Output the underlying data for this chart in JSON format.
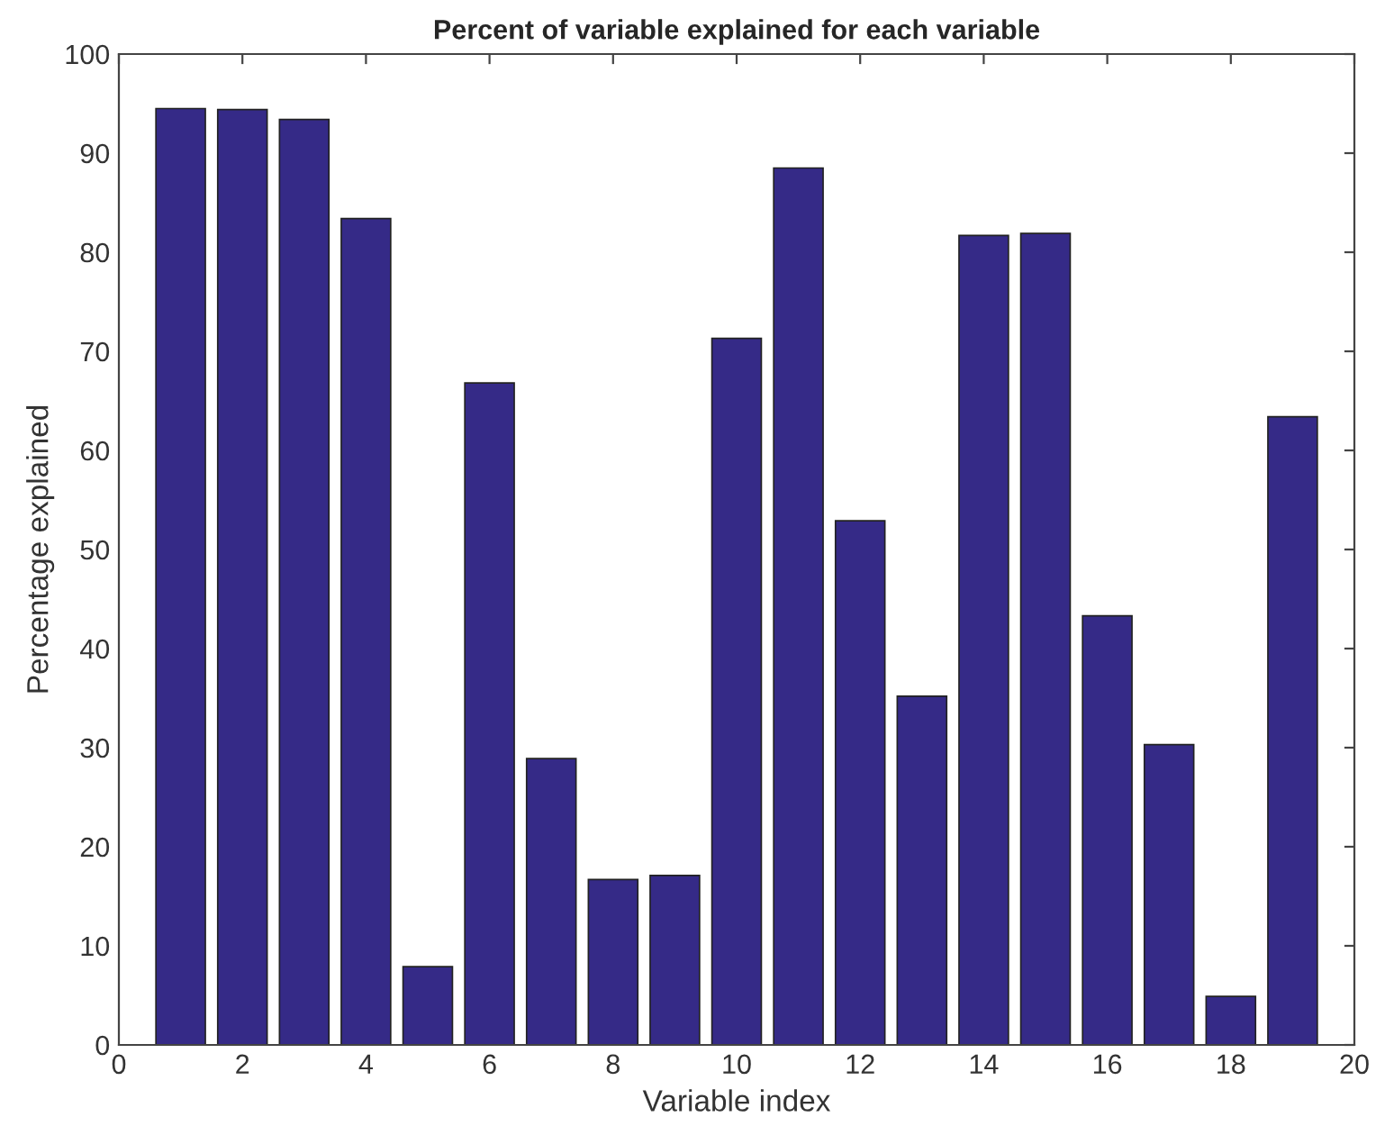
{
  "chart_data": {
    "type": "bar",
    "title": "Percent of variable explained for each variable",
    "xlabel": "Variable index",
    "ylabel": "Percentage explained",
    "x": [
      1,
      2,
      3,
      4,
      5,
      6,
      7,
      8,
      9,
      10,
      11,
      12,
      13,
      14,
      15,
      16,
      17,
      18,
      19
    ],
    "values": [
      94.5,
      94.4,
      93.4,
      83.4,
      7.9,
      66.8,
      28.9,
      16.7,
      17.1,
      71.3,
      88.5,
      52.9,
      35.2,
      81.7,
      81.9,
      43.3,
      30.3,
      4.9,
      63.4
    ],
    "color": "#352a87",
    "xlim": [
      0,
      20
    ],
    "xticks": [
      0,
      2,
      4,
      6,
      8,
      10,
      12,
      14,
      16,
      18,
      20
    ],
    "ylim": [
      0,
      100
    ],
    "yticks": [
      0,
      10,
      20,
      30,
      40,
      50,
      60,
      70,
      80,
      90,
      100
    ],
    "grid": false,
    "legend": false
  }
}
